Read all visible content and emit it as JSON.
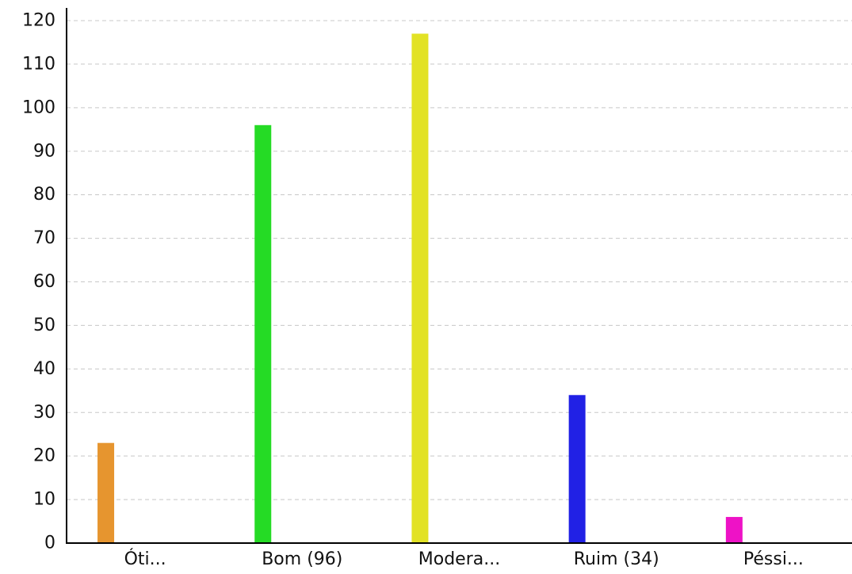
{
  "chart_data": {
    "type": "bar",
    "title": "",
    "xlabel": "",
    "ylabel": "",
    "categories": [
      "Óti...",
      "Bom (96)",
      "Modera...",
      "Ruim (34)",
      "Péssi..."
    ],
    "values": [
      23,
      96,
      117,
      34,
      6
    ],
    "bar_colors": [
      "#e6952f",
      "#25db25",
      "#e2e225",
      "#2121e5",
      "#ee12c6"
    ],
    "grid_color": "#c8c8c8",
    "axis_color": "#000000",
    "ylim": [
      0,
      120
    ],
    "yticks": [
      0,
      10,
      20,
      30,
      40,
      50,
      60,
      70,
      80,
      90,
      100,
      110,
      120
    ],
    "grid": true,
    "legend": "none"
  }
}
